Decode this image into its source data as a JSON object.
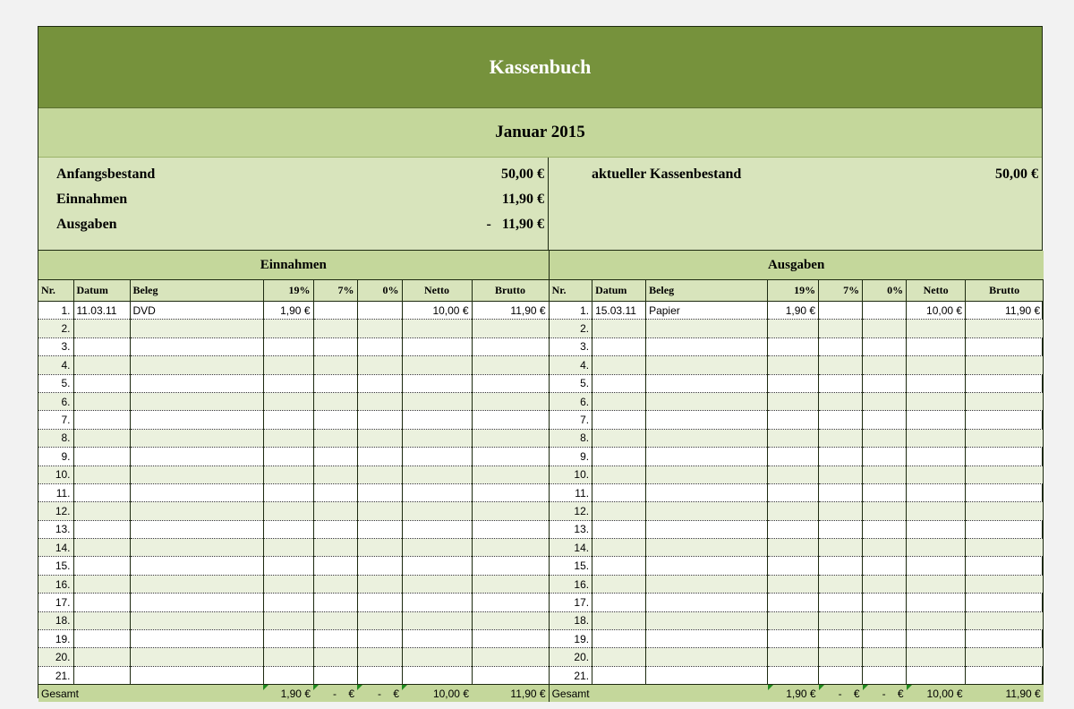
{
  "title": "Kassenbuch",
  "month": "Januar 2015",
  "summary": {
    "anfangsbestand_label": "Anfangsbestand",
    "anfangsbestand": "50,00 €",
    "einnahmen_label": "Einnahmen",
    "einnahmen": "11,90 €",
    "ausgaben_label": "Ausgaben",
    "ausgaben": "-   11,90 €",
    "kassenbestand_label": "aktueller Kassenbestand",
    "kassenbestand": "50,00 €"
  },
  "columns": [
    "Nr.",
    "Datum",
    "Beleg",
    "19%",
    "7%",
    "0%",
    "Netto",
    "Brutto"
  ],
  "einnahmen": {
    "title": "Einnahmen",
    "rows": [
      [
        "1.",
        "11.03.11",
        "DVD",
        "1,90 €",
        "",
        "",
        "10,00 €",
        "11,90 €"
      ]
    ],
    "total": [
      "Gesamt",
      "1,90 €",
      "-    €",
      "-    €",
      "10,00 €",
      "11,90 €"
    ]
  },
  "ausgaben": {
    "title": "Ausgaben",
    "rows": [
      [
        "1.",
        "15.03.11",
        "Papier",
        "1,90 €",
        "",
        "",
        "10,00 €",
        "11,90 €"
      ]
    ],
    "total": [
      "Gesamt",
      "1,90 €",
      "-    €",
      "-    €",
      "10,00 €",
      "11,90 €"
    ]
  },
  "row_count": 21,
  "colors": {
    "header": "#76923c",
    "band": "#c4d79b",
    "light": "#d8e4bc",
    "alt_row": "#ebf1de"
  }
}
